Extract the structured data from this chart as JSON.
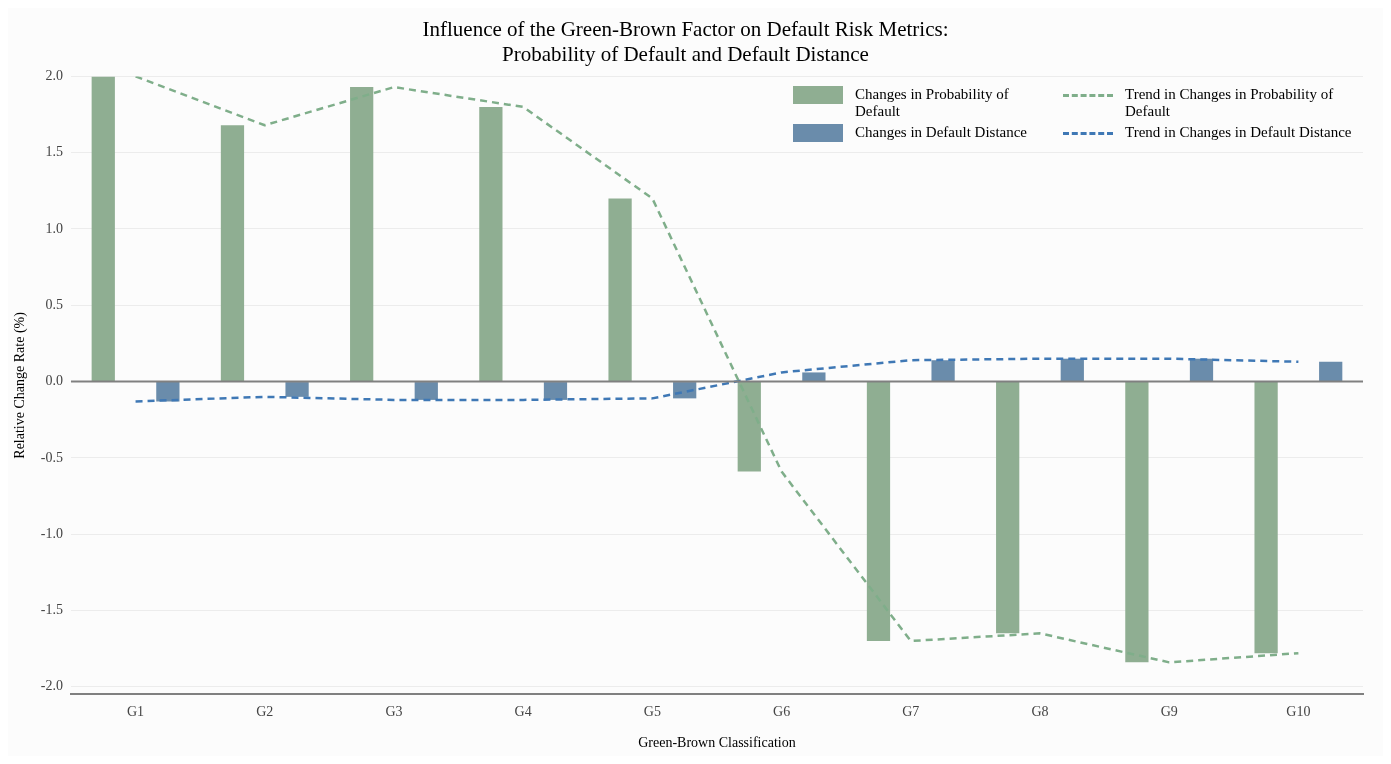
{
  "chart_data": {
    "type": "bar",
    "title": "Influence of the Green-Brown Factor on Default Risk Metrics:\nProbability of Default and Default Distance",
    "xlabel": "Green-Brown Classification",
    "ylabel": "Relative Change Rate (%)",
    "categories": [
      "G1",
      "G2",
      "G3",
      "G4",
      "G5",
      "G6",
      "G7",
      "G8",
      "G9",
      "G10"
    ],
    "series": [
      {
        "name": "Changes in Probability of Default",
        "color": "#8fae92",
        "values": [
          2.0,
          1.68,
          1.93,
          1.8,
          1.2,
          -0.59,
          -1.7,
          -1.65,
          -1.84,
          -1.78
        ]
      },
      {
        "name": "Changes in Default Distance",
        "color": "#6a8cab",
        "values": [
          -0.13,
          -0.1,
          -0.12,
          -0.12,
          -0.11,
          0.06,
          0.14,
          0.15,
          0.15,
          0.13
        ]
      },
      {
        "name": "Trend in Changes in Probability of Default",
        "type": "line",
        "color": "#7fae8a",
        "line_style": "dashed",
        "values": [
          2.0,
          1.68,
          1.93,
          1.8,
          1.2,
          -0.59,
          -1.7,
          -1.65,
          -1.84,
          -1.78
        ]
      },
      {
        "name": "Trend in Changes in Default Distance",
        "type": "line",
        "color": "#3f78b5",
        "line_style": "dashed",
        "values": [
          -0.13,
          -0.1,
          -0.12,
          -0.12,
          -0.11,
          0.06,
          0.14,
          0.15,
          0.15,
          0.13
        ]
      }
    ],
    "ylim": [
      -2.05,
      2.0
    ],
    "yticks": [
      {
        "value": -2,
        "label": "-2.0"
      },
      {
        "value": -1.5,
        "label": "-1.5"
      },
      {
        "value": -1,
        "label": "-1.0"
      },
      {
        "value": -0.5,
        "label": "-0.5"
      },
      {
        "value": 0,
        "label": "0.0"
      },
      {
        "value": 0.5,
        "label": "0.5"
      },
      {
        "value": 1,
        "label": "1.0"
      },
      {
        "value": 1.5,
        "label": "1.5"
      },
      {
        "value": 2,
        "label": "2.0"
      }
    ],
    "ref_lines": [
      {
        "axis": "y",
        "value": 0,
        "color": "#808080"
      }
    ],
    "grid": "y",
    "legend": "top right",
    "marker": "none"
  }
}
